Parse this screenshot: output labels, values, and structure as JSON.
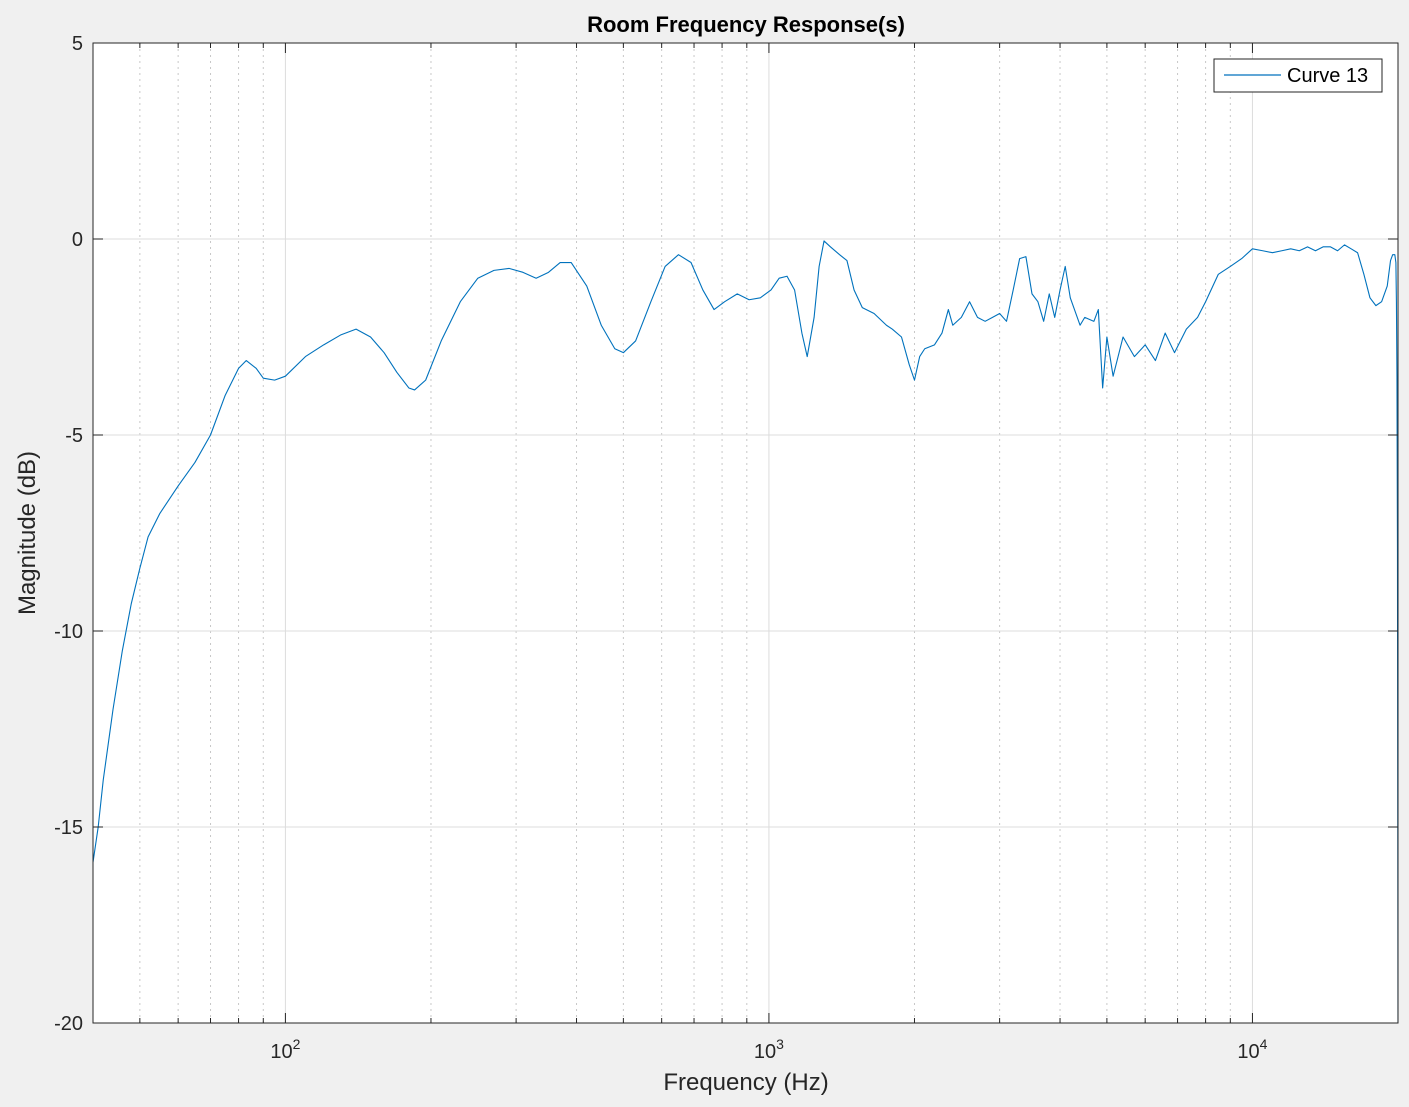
{
  "chart_data": {
    "type": "line",
    "title": "Room Frequency Response(s)",
    "xlabel": "Frequency (Hz)",
    "ylabel": "Magnitude (dB)",
    "xscale": "log",
    "xlim": [
      40,
      20000
    ],
    "ylim": [
      -20,
      5
    ],
    "yticks": [
      5,
      0,
      -5,
      -10,
      -15,
      -20
    ],
    "ytick_labels": [
      "5",
      "0",
      "-5",
      "-10",
      "-15",
      "-20"
    ],
    "xticks": [
      {
        "value": 100,
        "base": "10",
        "exp": "2"
      },
      {
        "value": 1000,
        "base": "10",
        "exp": "3"
      },
      {
        "value": 10000,
        "base": "10",
        "exp": "4"
      }
    ],
    "grid": true,
    "legend": {
      "position": "top-right",
      "entries": [
        "Curve 13"
      ]
    },
    "series": [
      {
        "name": "Curve 13",
        "color": "#0072BD",
        "points": [
          [
            40,
            -15.9
          ],
          [
            41,
            -15.0
          ],
          [
            42,
            -13.8
          ],
          [
            44,
            -12.0
          ],
          [
            46,
            -10.5
          ],
          [
            48,
            -9.3
          ],
          [
            50,
            -8.4
          ],
          [
            52,
            -7.6
          ],
          [
            55,
            -7.0
          ],
          [
            60,
            -6.3
          ],
          [
            65,
            -5.7
          ],
          [
            70,
            -5.0
          ],
          [
            75,
            -4.0
          ],
          [
            80,
            -3.3
          ],
          [
            83,
            -3.1
          ],
          [
            87,
            -3.3
          ],
          [
            90,
            -3.55
          ],
          [
            95,
            -3.6
          ],
          [
            100,
            -3.5
          ],
          [
            110,
            -3.0
          ],
          [
            120,
            -2.7
          ],
          [
            130,
            -2.45
          ],
          [
            140,
            -2.3
          ],
          [
            150,
            -2.5
          ],
          [
            160,
            -2.9
          ],
          [
            170,
            -3.4
          ],
          [
            180,
            -3.8
          ],
          [
            185,
            -3.85
          ],
          [
            195,
            -3.6
          ],
          [
            210,
            -2.6
          ],
          [
            230,
            -1.6
          ],
          [
            250,
            -1.0
          ],
          [
            270,
            -0.8
          ],
          [
            290,
            -0.75
          ],
          [
            310,
            -0.85
          ],
          [
            330,
            -1.0
          ],
          [
            350,
            -0.85
          ],
          [
            370,
            -0.6
          ],
          [
            390,
            -0.6
          ],
          [
            420,
            -1.2
          ],
          [
            450,
            -2.2
          ],
          [
            480,
            -2.8
          ],
          [
            500,
            -2.9
          ],
          [
            530,
            -2.6
          ],
          [
            570,
            -1.6
          ],
          [
            610,
            -0.7
          ],
          [
            650,
            -0.4
          ],
          [
            690,
            -0.6
          ],
          [
            730,
            -1.3
          ],
          [
            770,
            -1.8
          ],
          [
            810,
            -1.6
          ],
          [
            860,
            -1.4
          ],
          [
            910,
            -1.55
          ],
          [
            960,
            -1.5
          ],
          [
            1010,
            -1.3
          ],
          [
            1050,
            -1.0
          ],
          [
            1090,
            -0.95
          ],
          [
            1130,
            -1.3
          ],
          [
            1170,
            -2.4
          ],
          [
            1200,
            -3.0
          ],
          [
            1240,
            -2.0
          ],
          [
            1270,
            -0.7
          ],
          [
            1300,
            -0.05
          ],
          [
            1340,
            -0.2
          ],
          [
            1400,
            -0.4
          ],
          [
            1450,
            -0.55
          ],
          [
            1500,
            -1.3
          ],
          [
            1560,
            -1.75
          ],
          [
            1650,
            -1.9
          ],
          [
            1750,
            -2.2
          ],
          [
            1800,
            -2.3
          ],
          [
            1880,
            -2.5
          ],
          [
            1950,
            -3.2
          ],
          [
            2000,
            -3.6
          ],
          [
            2050,
            -3.0
          ],
          [
            2100,
            -2.8
          ],
          [
            2200,
            -2.7
          ],
          [
            2280,
            -2.4
          ],
          [
            2350,
            -1.8
          ],
          [
            2400,
            -2.2
          ],
          [
            2500,
            -2.0
          ],
          [
            2600,
            -1.6
          ],
          [
            2700,
            -2.0
          ],
          [
            2800,
            -2.1
          ],
          [
            2900,
            -2.0
          ],
          [
            3000,
            -1.9
          ],
          [
            3100,
            -2.1
          ],
          [
            3200,
            -1.3
          ],
          [
            3300,
            -0.5
          ],
          [
            3400,
            -0.45
          ],
          [
            3500,
            -1.4
          ],
          [
            3600,
            -1.6
          ],
          [
            3700,
            -2.1
          ],
          [
            3800,
            -1.4
          ],
          [
            3900,
            -2.0
          ],
          [
            4000,
            -1.3
          ],
          [
            4100,
            -0.7
          ],
          [
            4200,
            -1.5
          ],
          [
            4400,
            -2.2
          ],
          [
            4500,
            -2.0
          ],
          [
            4700,
            -2.1
          ],
          [
            4800,
            -1.8
          ],
          [
            4900,
            -3.8
          ],
          [
            5000,
            -2.5
          ],
          [
            5150,
            -3.5
          ],
          [
            5400,
            -2.5
          ],
          [
            5700,
            -3.0
          ],
          [
            6000,
            -2.7
          ],
          [
            6300,
            -3.1
          ],
          [
            6600,
            -2.4
          ],
          [
            6900,
            -2.9
          ],
          [
            7300,
            -2.3
          ],
          [
            7700,
            -2.0
          ],
          [
            8000,
            -1.6
          ],
          [
            8500,
            -0.9
          ],
          [
            9000,
            -0.7
          ],
          [
            9500,
            -0.5
          ],
          [
            10000,
            -0.25
          ],
          [
            10500,
            -0.3
          ],
          [
            11000,
            -0.35
          ],
          [
            11500,
            -0.3
          ],
          [
            12000,
            -0.25
          ],
          [
            12500,
            -0.3
          ],
          [
            13000,
            -0.2
          ],
          [
            13500,
            -0.3
          ],
          [
            14000,
            -0.2
          ],
          [
            14500,
            -0.2
          ],
          [
            15000,
            -0.3
          ],
          [
            15500,
            -0.15
          ],
          [
            16000,
            -0.25
          ],
          [
            16500,
            -0.35
          ],
          [
            17000,
            -0.9
          ],
          [
            17500,
            -1.5
          ],
          [
            18000,
            -1.7
          ],
          [
            18500,
            -1.6
          ],
          [
            19000,
            -1.2
          ],
          [
            19300,
            -0.55
          ],
          [
            19500,
            -0.4
          ],
          [
            19700,
            -0.4
          ],
          [
            19800,
            -0.6
          ],
          [
            19850,
            -1.6
          ],
          [
            19900,
            -3.5
          ],
          [
            19950,
            -8.0
          ],
          [
            19980,
            -15.0
          ],
          [
            20000,
            -20.0
          ]
        ]
      }
    ]
  }
}
